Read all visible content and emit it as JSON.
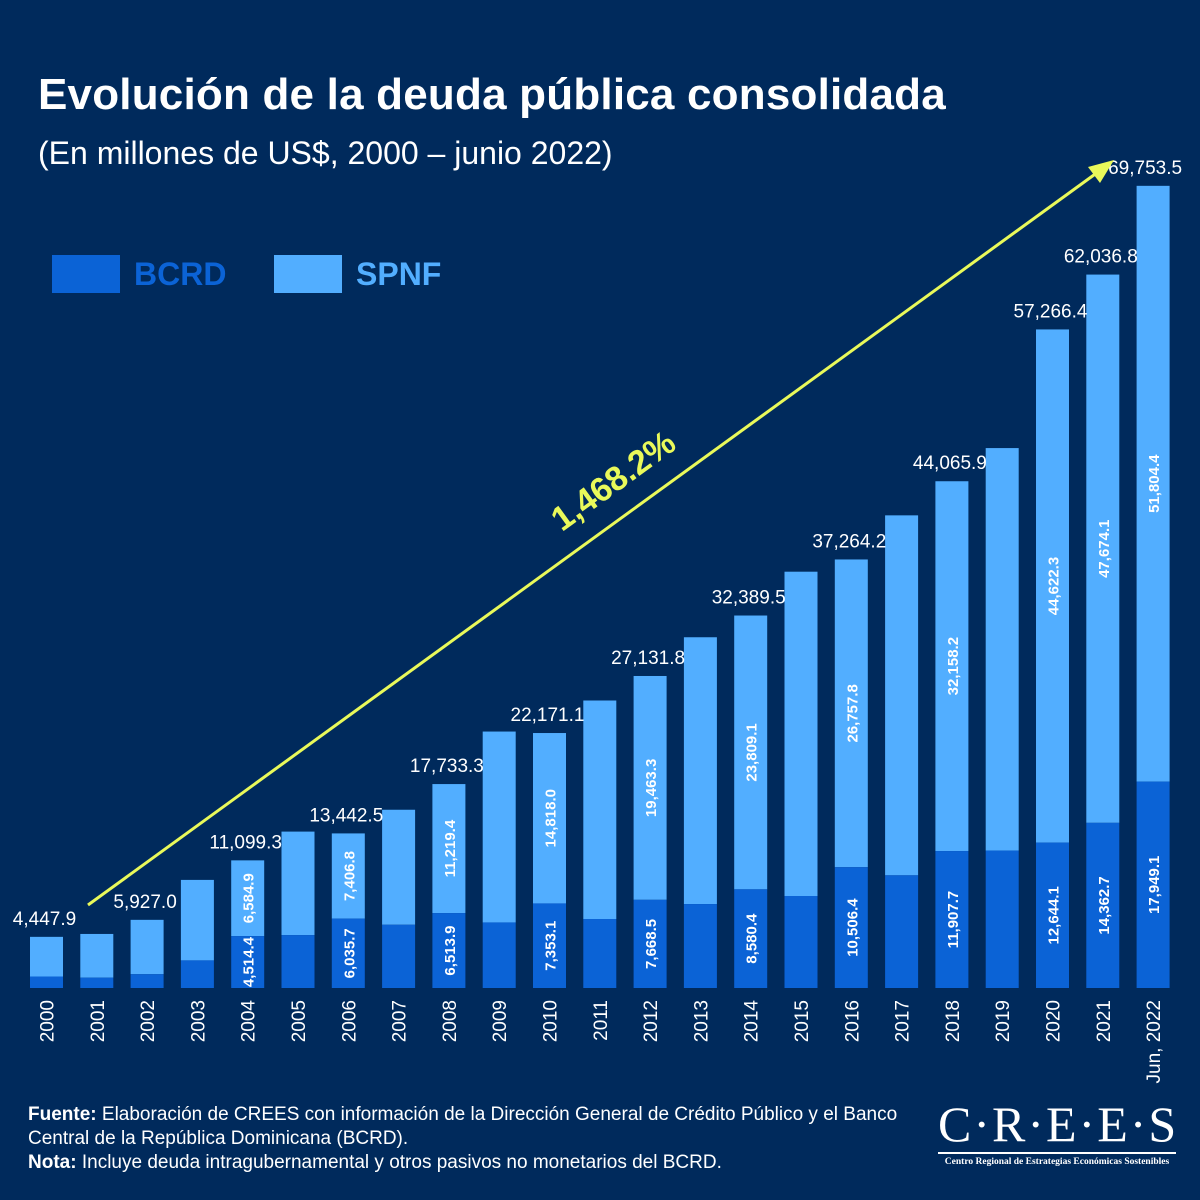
{
  "title": "Evolución de la deuda pública consolidada",
  "subtitle": "(En millones de US$, 2000 – junio 2022)",
  "colors": {
    "background": "#002a5c",
    "bcrd": "#0b63d6",
    "spnf": "#52aeff",
    "arrow": "#e9f95a",
    "text": "#ffffff"
  },
  "legend": [
    {
      "label": "BCRD",
      "color": "#0b63d6"
    },
    {
      "label": "SPNF",
      "color": "#52aeff"
    }
  ],
  "annotation": {
    "growth_label": "1,468.2%"
  },
  "footer": {
    "source_label": "Fuente:",
    "source_text": "Elaboración de CREES con información de la Dirección General de Crédito Público y el Banco Central de la República Dominicana (BCRD).",
    "note_label": "Nota:",
    "note_text": "Incluye deuda intragubernamental y otros pasivos no monetarios del BCRD."
  },
  "logo": {
    "text": "C·R·E·E·S",
    "subtitle": "Centro Regional de Estrategias Económicas Sostenibles"
  },
  "chart_data": {
    "type": "bar",
    "stacked": true,
    "categories": [
      "2000",
      "2001",
      "2002",
      "2003",
      "2004",
      "2005",
      "2006",
      "2007",
      "2008",
      "2009",
      "2010",
      "2011",
      "2012",
      "2013",
      "2014",
      "2015",
      "2016",
      "2017",
      "2018",
      "2019",
      "2020",
      "2021",
      "Jun, 2022"
    ],
    "series": [
      {
        "name": "BCRD",
        "values": [
          1000,
          900,
          1200,
          2400,
          4514.4,
          4600,
          6035.7,
          5500,
          6513.9,
          5700,
          7353.1,
          6000,
          7668.5,
          7300,
          8580.4,
          8000,
          10506.4,
          9800,
          11907.7,
          11950,
          12644.1,
          14362.7,
          17949.1
        ]
      },
      {
        "name": "SPNF",
        "values": [
          3447.9,
          3800,
          4727.0,
          7000,
          6584.9,
          9000,
          7406.8,
          10000,
          11219.4,
          16600,
          14818.0,
          19000,
          19463.3,
          23200,
          23809.1,
          28200,
          26757.8,
          31300,
          32158.2,
          35000,
          44622.3,
          47674.1,
          51804.4
        ]
      }
    ],
    "bcrd_labels": [
      "",
      "",
      "",
      "",
      "4,514.4",
      "",
      "6,035.7",
      "",
      "6,513.9",
      "",
      "7,353.1",
      "",
      "7,668.5",
      "",
      "8,580.4",
      "",
      "10,506.4",
      "",
      "11,907.7",
      "",
      "12,644.1",
      "14,362.7",
      "17,949.1"
    ],
    "spnf_labels": [
      "",
      "",
      "",
      "",
      "6,584.9",
      "",
      "7,406.8",
      "",
      "11,219.4",
      "",
      "14,818.0",
      "",
      "19,463.3",
      "",
      "23,809.1",
      "",
      "26,757.8",
      "",
      "32,158.2",
      "",
      "44,622.3",
      "47,674.1",
      "51,804.4"
    ],
    "total_labels": [
      "4,447.9",
      "",
      "5,927.0",
      "",
      "11,099.3",
      "",
      "13,442.5",
      "",
      "17,733.3",
      "",
      "22,171.1",
      "",
      "27,131.8",
      "",
      "32,389.5",
      "",
      "37,264.2",
      "",
      "44,065.9",
      "",
      "57,266.4",
      "62,036.8",
      "69,753.5"
    ],
    "ylim": [
      0,
      70000
    ],
    "legend_position": "top-left",
    "grid": false
  }
}
